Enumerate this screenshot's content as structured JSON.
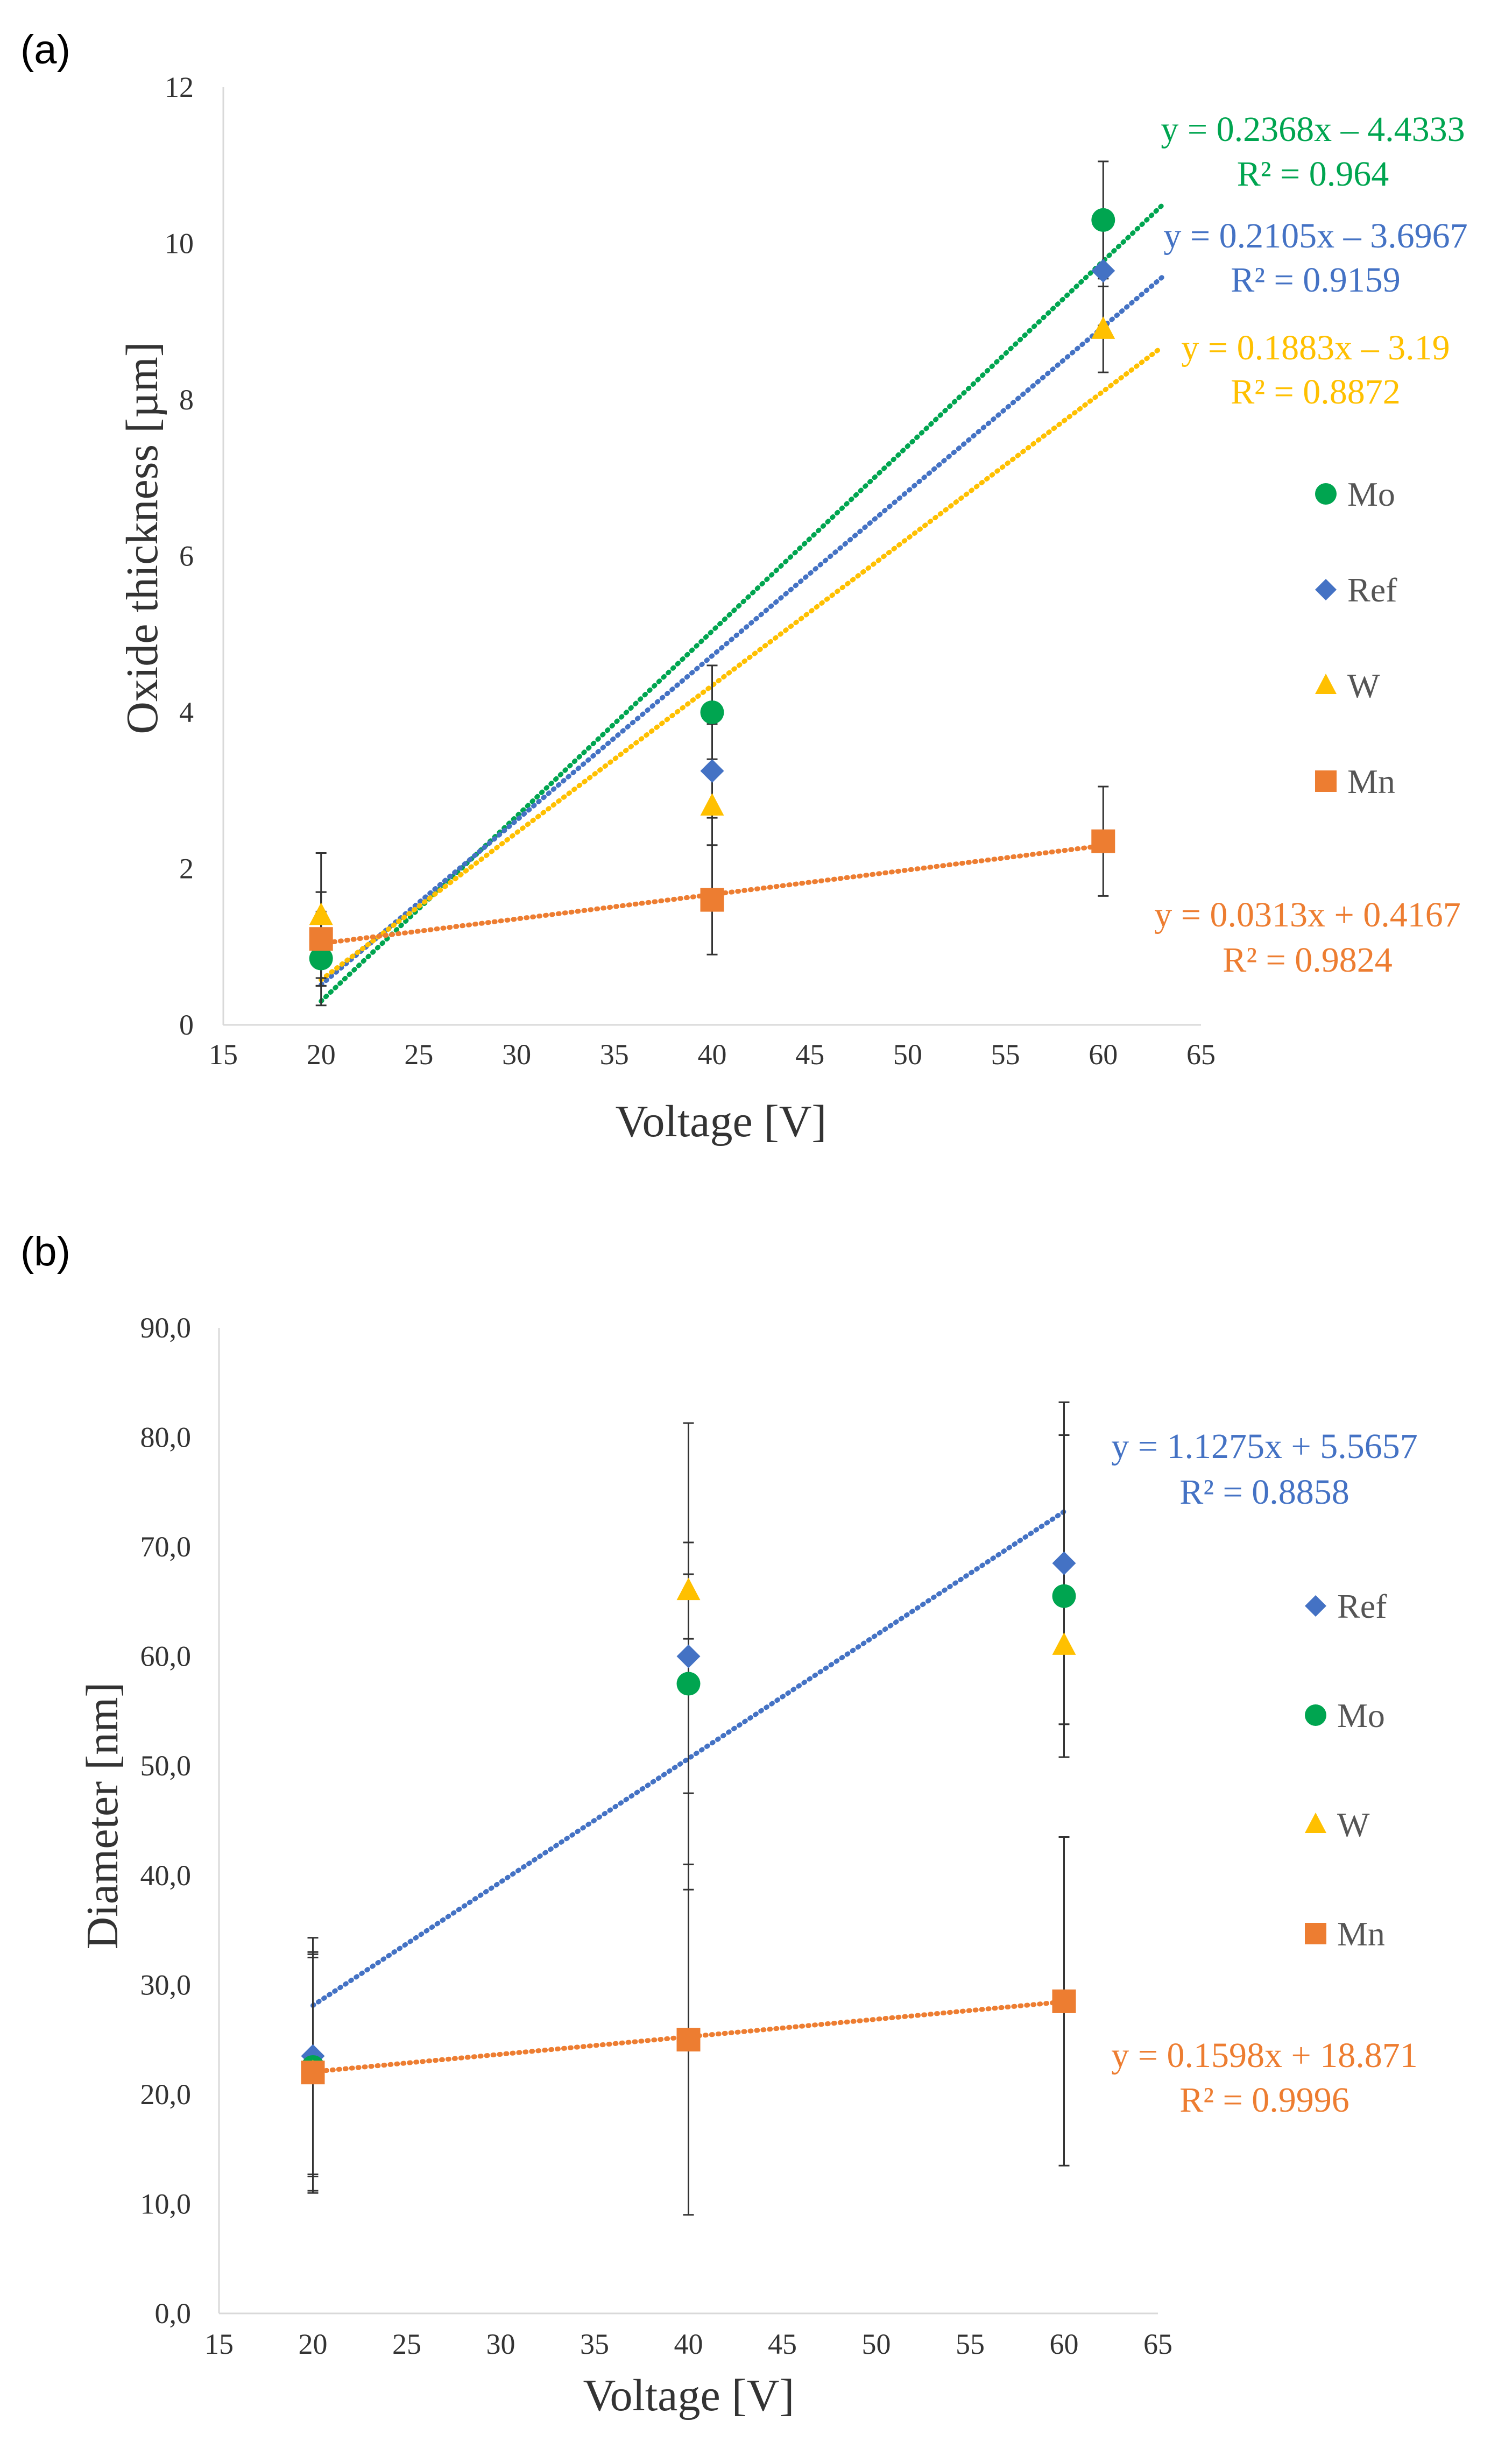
{
  "chart_data": [
    {
      "panel_label": "(a)",
      "type": "scatter",
      "xlabel": "Voltage [V]",
      "ylabel": "Oxide thickness [µm]",
      "xlim": [
        15,
        65
      ],
      "ylim": [
        0,
        12
      ],
      "x_ticks": [
        "15",
        "20",
        "25",
        "30",
        "35",
        "40",
        "45",
        "50",
        "55",
        "60",
        "65"
      ],
      "y_ticks": [
        "0",
        "2",
        "4",
        "6",
        "8",
        "10",
        "12"
      ],
      "grid": false,
      "legend_position": "right",
      "legend": [
        "Mo",
        "Ref",
        "W",
        "Mn"
      ],
      "series": [
        {
          "name": "Mo",
          "marker": "circle",
          "color": "#00A550",
          "x": [
            20,
            40,
            60
          ],
          "y": [
            0.85,
            4.0,
            10.3
          ],
          "err": [
            0.6,
            0.6,
            0.75
          ],
          "trend": {
            "slope": 0.2368,
            "intercept": -4.4333,
            "x_range": [
              20,
              63
            ]
          },
          "equation": "y = 0.2368x –  4.4333",
          "r2": "R² = 0.964"
        },
        {
          "name": "Ref",
          "marker": "diamond",
          "color": "#4472C4",
          "x": [
            20,
            40,
            60
          ],
          "y": [
            1.1,
            3.25,
            9.65
          ],
          "err": [
            0.6,
            0.6,
            0.7
          ],
          "trend": {
            "slope": 0.2105,
            "intercept": -3.6967,
            "x_range": [
              20,
              63
            ]
          },
          "equation": "y = 0.2105x – 3.6967",
          "r2": "R² = 0.9159"
        },
        {
          "name": "W",
          "marker": "triangle",
          "color": "#FFC000",
          "x": [
            20,
            40,
            60
          ],
          "y": [
            1.4,
            2.8,
            8.9
          ],
          "err": [
            0.8,
            0.5,
            0.55
          ],
          "trend": {
            "slope": 0.1883,
            "intercept": -3.19,
            "x_range": [
              20,
              63
            ]
          },
          "equation": "y = 0.1883x – 3.19",
          "r2": "R² = 0.8872"
        },
        {
          "name": "Mn",
          "marker": "square",
          "color": "#ED7D31",
          "x": [
            20,
            40,
            60
          ],
          "y": [
            1.1,
            1.6,
            2.35
          ],
          "err": [
            0.6,
            0.7,
            0.7
          ],
          "trend": {
            "slope": 0.0313,
            "intercept": 0.4167,
            "x_range": [
              20,
              60
            ]
          },
          "equation": "y = 0.0313x + 0.4167",
          "r2": "R² = 0.9824"
        }
      ]
    },
    {
      "panel_label": "(b)",
      "type": "scatter",
      "xlabel": "Voltage [V]",
      "ylabel": "Diameter [nm]",
      "xlim": [
        15,
        65
      ],
      "ylim": [
        0,
        90
      ],
      "x_ticks": [
        "15",
        "20",
        "25",
        "30",
        "35",
        "40",
        "45",
        "50",
        "55",
        "60",
        "65"
      ],
      "y_ticks": [
        "0,0",
        "10,0",
        "20,0",
        "30,0",
        "40,0",
        "50,0",
        "60,0",
        "70,0",
        "80,0",
        "90,0"
      ],
      "grid": false,
      "legend_position": "right",
      "legend": [
        "Ref",
        "Mo",
        "W",
        "Mn"
      ],
      "series": [
        {
          "name": "Ref",
          "marker": "diamond",
          "color": "#4472C4",
          "x": [
            20,
            40,
            60
          ],
          "y": [
            23.5,
            60.0,
            68.5
          ],
          "err": [
            10.8,
            21.3,
            14.7
          ],
          "trend": {
            "slope": 1.1275,
            "intercept": 5.5657,
            "x_range": [
              20,
              60
            ]
          },
          "equation": "y = 1.1275x + 5.5657",
          "r2": "R² = 0.8858"
        },
        {
          "name": "Mo",
          "marker": "circle",
          "color": "#00A550",
          "x": [
            20,
            40,
            60
          ],
          "y": [
            22.5,
            57.5,
            65.5
          ],
          "err": [
            10.0,
            10.0,
            14.7
          ],
          "trend": null
        },
        {
          "name": "W",
          "marker": "triangle",
          "color": "#FFC000",
          "x": [
            20,
            40,
            60
          ],
          "y": [
            22.0,
            66.0,
            61.0
          ],
          "err": [
            10.8,
            4.4,
            7.2
          ],
          "trend": null
        },
        {
          "name": "Mn",
          "marker": "square",
          "color": "#ED7D31",
          "x": [
            20,
            40,
            60
          ],
          "y": [
            22.0,
            25.0,
            28.5
          ],
          "err": [
            11.0,
            16.0,
            15.0
          ],
          "trend": {
            "slope": 0.1598,
            "intercept": 18.871,
            "x_range": [
              20,
              60
            ]
          },
          "equation": "y = 0.1598x + 18.871",
          "r2": "R² = 0.9996"
        }
      ]
    }
  ]
}
